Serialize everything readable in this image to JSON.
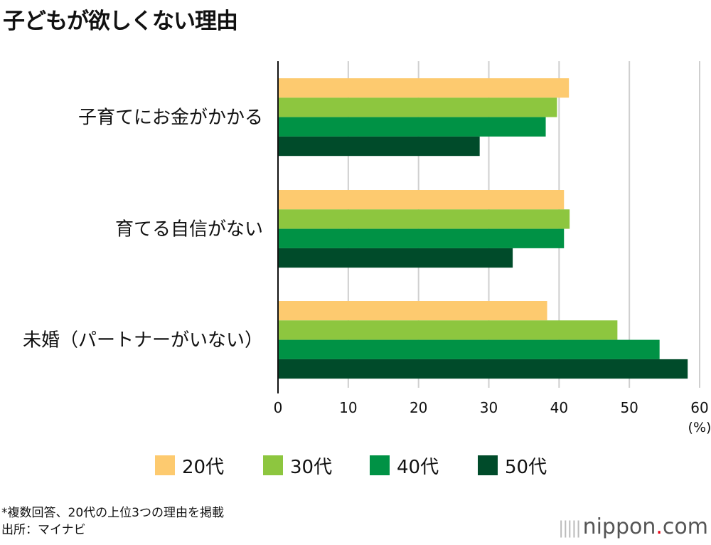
{
  "title": "子どもが欲しくない理由",
  "chart_data": {
    "type": "bar",
    "orientation": "horizontal",
    "categories": [
      "子育てにお金がかかる",
      "育てる自信がない",
      "未婚（パートナーがいない）"
    ],
    "series": [
      {
        "name": "20代",
        "color": "#fdca6f",
        "values": [
          41.4,
          40.7,
          38.3
        ]
      },
      {
        "name": "30代",
        "color": "#8dc63f",
        "values": [
          39.7,
          41.5,
          48.3
        ]
      },
      {
        "name": "40代",
        "color": "#009245",
        "values": [
          38.1,
          40.7,
          54.3
        ]
      },
      {
        "name": "50代",
        "color": "#004b2a",
        "values": [
          28.7,
          33.4,
          58.3
        ]
      }
    ],
    "xlim": [
      0,
      60
    ],
    "xticks": [
      0,
      10,
      20,
      30,
      40,
      50,
      60
    ],
    "xunit": "(%)",
    "grid": true,
    "legend_position": "bottom"
  },
  "notes": [
    "*複数回答、20代の上位3つの理由を掲載",
    "出所：マイナビ"
  ],
  "logo": {
    "text": "nippon",
    "dot": ".",
    "suffix": "com"
  }
}
